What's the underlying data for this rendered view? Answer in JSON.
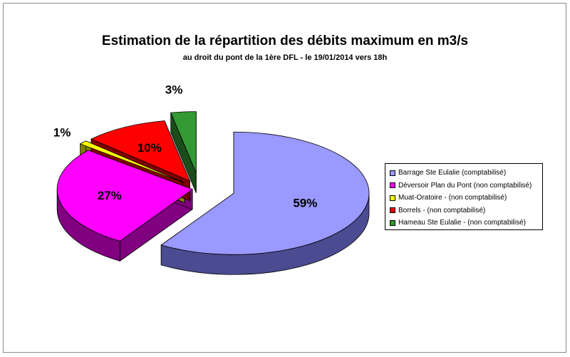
{
  "chart_data": {
    "type": "pie",
    "title": "Estimation de la répartition des débits maximum en m3/s",
    "subtitle": "au droit du pont de la 1ère DFL - le 19/01/2014 vers 18h",
    "slices": [
      {
        "label": "Barrage Ste Eulalie (comptabilisé)",
        "value": 59,
        "display": "59%",
        "color": "#9999ff",
        "side_color": "#4b4b91"
      },
      {
        "label": "Déversoir Plan du Pont (non comptabilisé)",
        "value": 27,
        "display": "27%",
        "color": "#ff00ff",
        "side_color": "#800080"
      },
      {
        "label": "Muat-Oratoire - (non comptabilisé)",
        "value": 1,
        "display": "1%",
        "color": "#ffff00",
        "side_color": "#808000"
      },
      {
        "label": "Borrels - (non comptabilisé)",
        "value": 10,
        "display": "10%",
        "color": "#ff0000",
        "side_color": "#800000"
      },
      {
        "label": "Hameau Ste Eulalie - (non comptabilisé)",
        "value": 3,
        "display": "3%",
        "color": "#339933",
        "side_color": "#1a4d1a"
      }
    ],
    "legend_position": "right",
    "style": "3d-exploded"
  }
}
